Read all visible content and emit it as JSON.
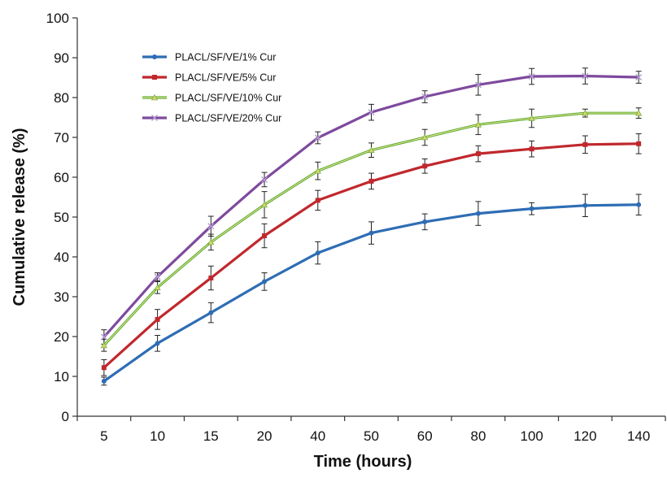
{
  "chart_data": {
    "type": "line",
    "title": "",
    "xlabel": "Time (hours)",
    "ylabel": "Cumulative release (%)",
    "categories": [
      "5",
      "10",
      "15",
      "20",
      "40",
      "50",
      "60",
      "80",
      "100",
      "120",
      "140"
    ],
    "ylim": [
      0,
      100
    ],
    "yticks": [
      "0",
      "10",
      "20",
      "30",
      "40",
      "50",
      "60",
      "70",
      "80",
      "90",
      "100"
    ],
    "grid": false,
    "legend_position": "top-left",
    "series": [
      {
        "name": "PLACL/SF/VE/1% Cur",
        "color": "#2e6db4",
        "values": [
          8.8,
          18.3,
          26.0,
          33.8,
          41.0,
          46.0,
          48.8,
          50.9,
          52.1,
          52.9,
          53.1
        ],
        "errors": [
          1.0,
          2.0,
          2.5,
          2.2,
          2.8,
          2.8,
          2.0,
          3.0,
          1.5,
          2.8,
          2.6
        ]
      },
      {
        "name": "PLACL/SF/VE/5% Cur",
        "color": "#c0282d",
        "values": [
          12.2,
          24.3,
          34.7,
          45.3,
          54.2,
          59.0,
          62.8,
          65.9,
          67.1,
          68.2,
          68.4
        ],
        "errors": [
          2.0,
          2.5,
          3.0,
          3.0,
          2.5,
          2.0,
          1.8,
          2.0,
          2.0,
          2.2,
          2.5
        ]
      },
      {
        "name": "PLACL/SF/VE/10% Cur",
        "color": "#5aa62e",
        "values": [
          17.8,
          32.3,
          43.7,
          53.1,
          61.6,
          66.8,
          70.0,
          73.2,
          74.8,
          76.1,
          76.1
        ],
        "errors": [
          1.5,
          1.5,
          2.0,
          3.3,
          2.2,
          1.8,
          2.0,
          2.5,
          2.3,
          1.0,
          1.3
        ]
      },
      {
        "name": "PLACL/SF/VE/20% Cur",
        "color": "#7e4a9e",
        "values": [
          19.9,
          35.0,
          47.7,
          59.4,
          69.9,
          76.3,
          80.2,
          83.2,
          85.3,
          85.4,
          85.1
        ],
        "errors": [
          1.8,
          1.0,
          2.5,
          1.8,
          1.5,
          2.0,
          1.5,
          2.6,
          2.0,
          2.0,
          1.5
        ]
      }
    ]
  }
}
